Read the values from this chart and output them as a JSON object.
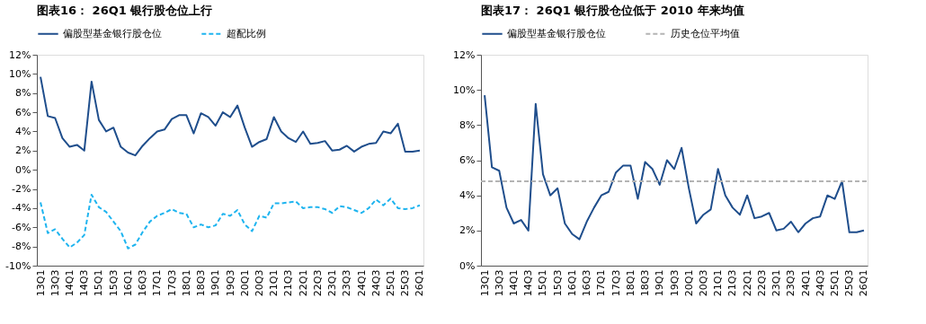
{
  "chart_data": [
    {
      "type": "line",
      "title": "图表16：  26Q1 银行股仓位上行",
      "categories": [
        "13Q1",
        null,
        "13Q3",
        null,
        "14Q1",
        null,
        "14Q3",
        null,
        "15Q1",
        null,
        "15Q3",
        null,
        "16Q1",
        null,
        "16Q3",
        null,
        "17Q1",
        null,
        "17Q3",
        null,
        "18Q1",
        null,
        "18Q3",
        null,
        "19Q1",
        null,
        "19Q3",
        null,
        "20Q1",
        null,
        "20Q3",
        null,
        "21Q1",
        null,
        "21Q3",
        null,
        "22Q1",
        null,
        "22Q3",
        null,
        "23Q1",
        null,
        "23Q3",
        null,
        "24Q1",
        null,
        "24Q3",
        null,
        "25Q1",
        null,
        "25Q3",
        null,
        "26Q1"
      ],
      "series": [
        {
          "name": "偏股型基金银行股仓位",
          "color": "#1f4e8c",
          "line_style": "solid",
          "values": [
            9.7,
            5.6,
            5.4,
            3.3,
            2.4,
            2.6,
            2.0,
            9.2,
            5.2,
            4.0,
            4.4,
            2.4,
            1.8,
            1.5,
            2.5,
            3.3,
            4.0,
            4.2,
            5.3,
            5.7,
            5.7,
            3.8,
            5.9,
            5.5,
            4.6,
            6.0,
            5.5,
            6.7,
            4.4,
            2.4,
            2.9,
            3.2,
            5.5,
            4.0,
            3.3,
            2.9,
            4.0,
            2.7,
            2.8,
            3.0,
            2.0,
            2.1,
            2.5,
            1.9,
            2.4,
            2.7,
            2.8,
            4.0,
            3.8,
            4.8,
            1.9,
            1.9,
            2.0
          ]
        },
        {
          "name": "超配比例",
          "color": "#1eb4ef",
          "line_style": "dashed",
          "values": [
            -3.4,
            -6.6,
            -6.2,
            -7.2,
            -8.1,
            -7.6,
            -6.8,
            -2.6,
            -3.9,
            -4.4,
            -5.4,
            -6.4,
            -8.2,
            -7.8,
            -6.5,
            -5.4,
            -4.8,
            -4.5,
            -4.1,
            -4.5,
            -4.6,
            -6.0,
            -5.7,
            -6.0,
            -5.8,
            -4.6,
            -4.8,
            -4.2,
            -5.7,
            -6.4,
            -4.8,
            -5.0,
            -3.5,
            -3.5,
            -3.4,
            -3.3,
            -4.0,
            -3.9,
            -3.9,
            -4.1,
            -4.5,
            -3.8,
            -3.9,
            -4.2,
            -4.5,
            -4.0,
            -3.1,
            -3.7,
            -3.0,
            -4.0,
            -4.1,
            -4.0,
            -3.7
          ]
        }
      ],
      "ylim": [
        -10,
        12
      ],
      "yticks": [
        {
          "value": -10,
          "label": "-10%"
        },
        {
          "value": -8,
          "label": "-8%"
        },
        {
          "value": -6,
          "label": "-6%"
        },
        {
          "value": -4,
          "label": "-4%"
        },
        {
          "value": -2,
          "label": "-2%"
        },
        {
          "value": 0,
          "label": "0%"
        },
        {
          "value": 2,
          "label": "2%"
        },
        {
          "value": 4,
          "label": "4%"
        },
        {
          "value": 6,
          "label": "6%"
        },
        {
          "value": 8,
          "label": "8%"
        },
        {
          "value": 10,
          "label": "10%"
        },
        {
          "value": 12,
          "label": "12%"
        }
      ],
      "legend": "top",
      "grid": false
    },
    {
      "type": "line",
      "title": "图表17：  26Q1 银行股仓位低于 2010 年来均值",
      "categories": [
        "13Q1",
        null,
        "13Q3",
        null,
        "14Q1",
        null,
        "14Q3",
        null,
        "15Q1",
        null,
        "15Q3",
        null,
        "16Q1",
        null,
        "16Q3",
        null,
        "17Q1",
        null,
        "17Q3",
        null,
        "18Q1",
        null,
        "18Q3",
        null,
        "19Q1",
        null,
        "19Q3",
        null,
        "20Q1",
        null,
        "20Q3",
        null,
        "21Q1",
        null,
        "21Q3",
        null,
        "22Q1",
        null,
        "22Q3",
        null,
        "23Q1",
        null,
        "23Q3",
        null,
        "24Q1",
        null,
        "24Q3",
        null,
        "25Q1",
        null,
        "25Q3",
        null,
        "26Q1"
      ],
      "series": [
        {
          "name": "偏股型基金银行股仓位",
          "color": "#1f4e8c",
          "line_style": "solid",
          "values": [
            9.7,
            5.6,
            5.4,
            3.3,
            2.4,
            2.6,
            2.0,
            9.2,
            5.2,
            4.0,
            4.4,
            2.4,
            1.8,
            1.5,
            2.5,
            3.3,
            4.0,
            4.2,
            5.3,
            5.7,
            5.7,
            3.8,
            5.9,
            5.5,
            4.6,
            6.0,
            5.5,
            6.7,
            4.4,
            2.4,
            2.9,
            3.2,
            5.5,
            4.0,
            3.3,
            2.9,
            4.0,
            2.7,
            2.8,
            3.0,
            2.0,
            2.1,
            2.5,
            1.9,
            2.4,
            2.7,
            2.8,
            4.0,
            3.8,
            4.8,
            1.9,
            1.9,
            2.0
          ]
        }
      ],
      "ref_lines": [
        {
          "axis": "y",
          "value": 4.8,
          "label": "历史仓位平均值",
          "color": "#b4b4b4",
          "line_style": "dashed"
        }
      ],
      "ylim": [
        0,
        12
      ],
      "yticks": [
        {
          "value": 0,
          "label": "0%"
        },
        {
          "value": 2,
          "label": "2%"
        },
        {
          "value": 4,
          "label": "4%"
        },
        {
          "value": 6,
          "label": "6%"
        },
        {
          "value": 8,
          "label": "8%"
        },
        {
          "value": 10,
          "label": "10%"
        },
        {
          "value": 12,
          "label": "12%"
        }
      ],
      "legend": "top",
      "grid": false
    }
  ]
}
